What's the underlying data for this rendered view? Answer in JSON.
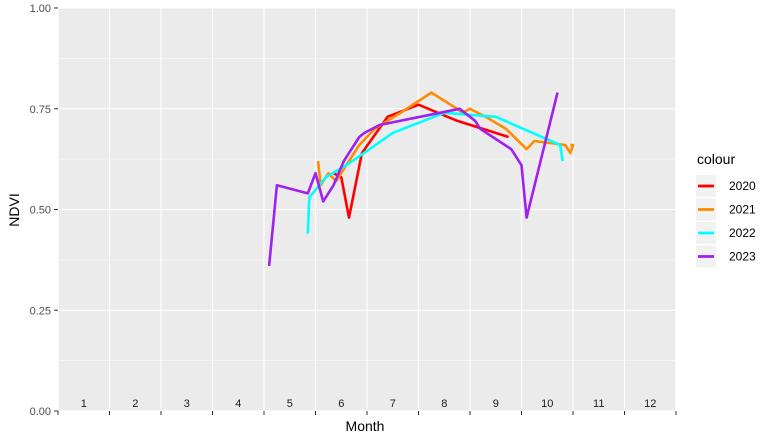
{
  "chart_data": {
    "type": "line",
    "xlabel": "Month",
    "ylabel": "NDVI",
    "xlim": [
      0.5,
      12.5
    ],
    "ylim": [
      0,
      1
    ],
    "x_month_labels": [
      "1",
      "2",
      "3",
      "4",
      "5",
      "6",
      "7",
      "8",
      "9",
      "10",
      "11",
      "12"
    ],
    "y_ticks": [
      {
        "value": 0,
        "label": "0.00"
      },
      {
        "value": 0.25,
        "label": "0.25"
      },
      {
        "value": 0.5,
        "label": "0.50"
      },
      {
        "value": 0.75,
        "label": "0.75"
      },
      {
        "value": 1,
        "label": "1.00"
      }
    ],
    "grid": true,
    "legend": {
      "title": "colour",
      "position": "right"
    },
    "series": [
      {
        "name": "2020",
        "color": "#FF0000",
        "points": [
          [
            5.85,
            0.59
          ],
          [
            6.0,
            0.58
          ],
          [
            6.15,
            0.48
          ],
          [
            6.4,
            0.64
          ],
          [
            6.9,
            0.73
          ],
          [
            7.5,
            0.76
          ],
          [
            8.25,
            0.72
          ],
          [
            8.75,
            0.7
          ],
          [
            9.25,
            0.68
          ]
        ]
      },
      {
        "name": "2021",
        "color": "#FF8C00",
        "points": [
          [
            5.55,
            0.62
          ],
          [
            5.6,
            0.56
          ],
          [
            5.75,
            0.59
          ],
          [
            5.9,
            0.57
          ],
          [
            6.15,
            0.62
          ],
          [
            6.35,
            0.66
          ],
          [
            6.65,
            0.7
          ],
          [
            7.15,
            0.74
          ],
          [
            7.75,
            0.79
          ],
          [
            8.25,
            0.75
          ],
          [
            8.35,
            0.74
          ],
          [
            8.5,
            0.75
          ],
          [
            8.8,
            0.73
          ],
          [
            9.2,
            0.7
          ],
          [
            9.6,
            0.65
          ],
          [
            9.75,
            0.67
          ],
          [
            10.35,
            0.66
          ],
          [
            10.45,
            0.64
          ],
          [
            10.5,
            0.66
          ],
          [
            10.45,
            0.66
          ]
        ]
      },
      {
        "name": "2022",
        "color": "#00FFFF",
        "points": [
          [
            5.35,
            0.44
          ],
          [
            5.38,
            0.53
          ],
          [
            5.7,
            0.58
          ],
          [
            6.1,
            0.61
          ],
          [
            7.0,
            0.69
          ],
          [
            8.0,
            0.74
          ],
          [
            9.0,
            0.73
          ],
          [
            10.25,
            0.66
          ],
          [
            10.3,
            0.62
          ]
        ]
      },
      {
        "name": "2023",
        "color": "#A020F0",
        "points": [
          [
            4.6,
            0.36
          ],
          [
            4.75,
            0.56
          ],
          [
            5.35,
            0.54
          ],
          [
            5.5,
            0.59
          ],
          [
            5.65,
            0.52
          ],
          [
            5.85,
            0.56
          ],
          [
            6.05,
            0.62
          ],
          [
            6.35,
            0.68
          ],
          [
            6.45,
            0.69
          ],
          [
            6.6,
            0.7
          ],
          [
            6.75,
            0.71
          ],
          [
            8.3,
            0.75
          ],
          [
            8.6,
            0.72
          ],
          [
            8.7,
            0.7
          ],
          [
            9.3,
            0.65
          ],
          [
            9.5,
            0.61
          ],
          [
            9.6,
            0.48
          ],
          [
            10.2,
            0.79
          ]
        ]
      }
    ]
  }
}
